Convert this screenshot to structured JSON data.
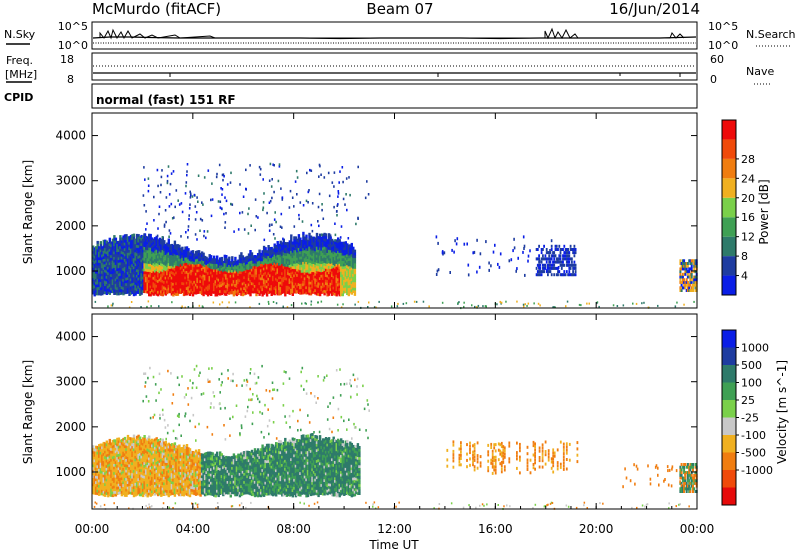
{
  "header": {
    "station": "McMurdo (fitACF)",
    "beam": "Beam 07",
    "date": "16/Jun/2014"
  },
  "panels": {
    "nsky_label": "N.Sky",
    "nsky_tick_top": "10^5",
    "nsky_tick_bottom": "10^0",
    "nsearch_label": "N.Search",
    "nsearch_tick_top": "10^5",
    "nsearch_tick_bottom": "10^0",
    "freq_label_1": "Freq.",
    "freq_label_2": "[MHz]",
    "freq_tick_top": "18",
    "freq_tick_bottom": "8",
    "nave_label": "Nave",
    "nave_tick_top": "60",
    "nave_tick_bottom": "0",
    "cpid_label": "CPID",
    "cpid_text": "normal (fast) 151 RF"
  },
  "x_axis": {
    "label": "Time UT",
    "ticks": [
      "00:00",
      "04:00",
      "08:00",
      "12:00",
      "16:00",
      "20:00",
      "00:00"
    ]
  },
  "colors": {
    "power": [
      "#0a1ee6",
      "#1e3ca0",
      "#2e7a6a",
      "#3fa054",
      "#7ad04a",
      "#f0b020",
      "#f07d10",
      "#f04a0a",
      "#ee0a0a"
    ],
    "velocity": [
      "#e60a0a",
      "#f04a0a",
      "#f07d10",
      "#f0b020",
      "#c8c8c8",
      "#7ad04a",
      "#3fa054",
      "#2e7a6a",
      "#1e3ca0",
      "#0a1ee6"
    ]
  },
  "chart_data": [
    {
      "type": "heatmap",
      "title": "",
      "xlabel": "Time UT",
      "ylabel": "Slant Range [km]",
      "xlim": [
        "00:00",
        "24:00"
      ],
      "ylim": [
        180,
        4500
      ],
      "y_ticks": [
        "1000",
        "2000",
        "3000",
        "4000"
      ],
      "colorbar": {
        "label": "Power [dB]",
        "range": [
          0,
          32
        ],
        "ticks": [
          "4",
          "8",
          "12",
          "16",
          "20",
          "24",
          "28"
        ]
      },
      "regions": [
        {
          "description": "",
          "t_start": 0.0,
          "t_end": 10.3,
          "range_min": 450,
          "range_max": 1800,
          "value_db": 10
        },
        {
          "description": "",
          "t_start": 2.0,
          "t_end": 9.8,
          "range_min": 500,
          "range_max": 1100,
          "value_db": 28
        },
        {
          "description": "",
          "t_start": 18.0,
          "t_end": 19.2,
          "range_min": 900,
          "range_max": 1600,
          "value_db": 8
        },
        {
          "description": "",
          "t_start": 23.5,
          "t_end": 24.0,
          "range_min": 600,
          "range_max": 1200,
          "value_db": 10
        }
      ]
    },
    {
      "type": "heatmap",
      "title": "",
      "xlabel": "Time UT",
      "ylabel": "Slant Range [km]",
      "xlim": [
        "00:00",
        "24:00"
      ],
      "ylim": [
        180,
        4500
      ],
      "y_ticks": [
        "1000",
        "2000",
        "3000",
        "4000"
      ],
      "colorbar": {
        "label": "Velocity [m s^-1]",
        "ticks": [
          "1000",
          "500",
          "100",
          "25",
          "-25",
          "-100",
          "-500",
          "-1000"
        ]
      },
      "regions": [
        {
          "description": "",
          "t_start": 0.0,
          "t_end": 4.5,
          "range_min": 500,
          "range_max": 1800,
          "value_ms": -100
        },
        {
          "description": "",
          "t_start": 4.0,
          "t_end": 10.5,
          "range_min": 450,
          "range_max": 1700,
          "value_ms": 100
        },
        {
          "description": "",
          "t_start": 14.0,
          "t_end": 19.5,
          "range_min": 1000,
          "range_max": 1800,
          "value_ms": -100
        },
        {
          "description": "",
          "t_start": 23.5,
          "t_end": 24.0,
          "range_min": 600,
          "range_max": 1200,
          "value_ms": 100
        }
      ]
    }
  ]
}
